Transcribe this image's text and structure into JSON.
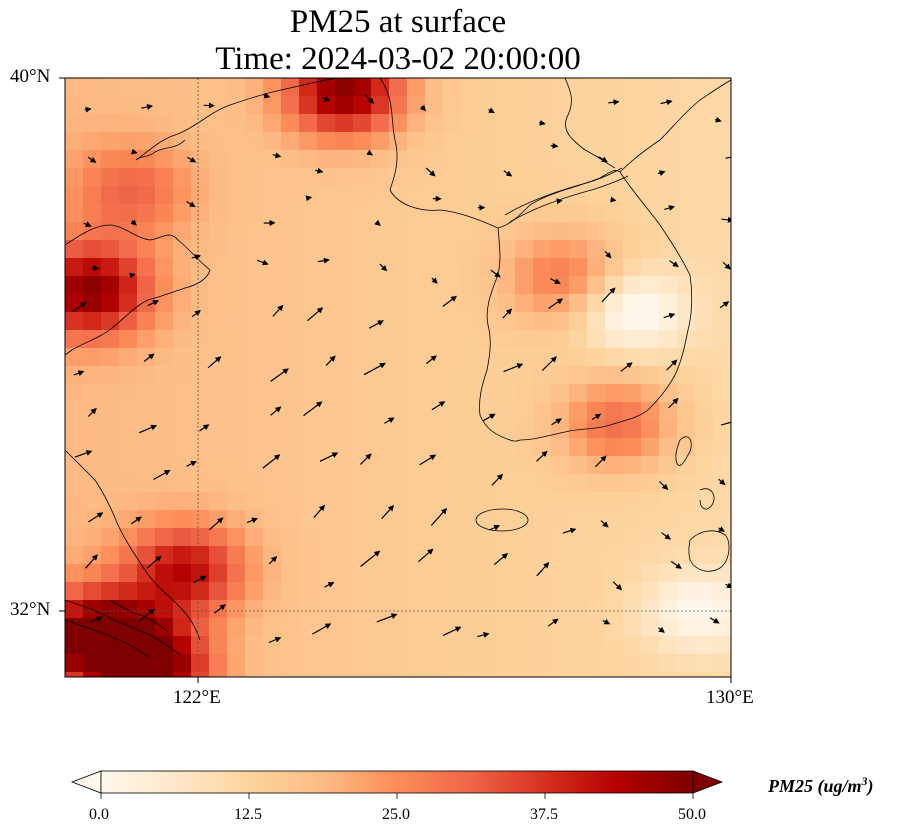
{
  "title": {
    "line1": "PM25 at surface",
    "line2": "Time: 2024-03-02 20:00:00"
  },
  "axes": {
    "lat_labels": [
      "40°N",
      "32°N"
    ],
    "lon_labels": [
      "122°E",
      "130°E"
    ],
    "lon_range": [
      120,
      130
    ],
    "lat_range": [
      31,
      40
    ]
  },
  "colorbar": {
    "title": "PM25 (ug/m",
    "title_superscript": "3",
    "title_close": ")",
    "ticks": [
      "0.0",
      "12.5",
      "25.0",
      "37.5",
      "50.0"
    ],
    "range": [
      0,
      50
    ],
    "extend": "both",
    "colormap": [
      "#fff7ec",
      "#fee8c8",
      "#fdd49e",
      "#fdbb84",
      "#fc8d59",
      "#ef6548",
      "#d7301f",
      "#b30000",
      "#7f0000"
    ]
  },
  "chart_data": {
    "type": "heatmap",
    "variable": "PM25",
    "units": "ug/m^3",
    "level": "surface",
    "time": "2024-03-02 20:00:00",
    "pollution_hotspots": [
      {
        "lon": 120.5,
        "lat": 31.6,
        "value": 50
      },
      {
        "lon": 121.3,
        "lat": 31.1,
        "value": 48
      },
      {
        "lon": 121.8,
        "lat": 32.6,
        "value": 40
      },
      {
        "lon": 120.4,
        "lat": 36.8,
        "value": 45
      },
      {
        "lon": 124.2,
        "lat": 39.8,
        "value": 48
      },
      {
        "lon": 121.0,
        "lat": 38.3,
        "value": 28
      },
      {
        "lon": 127.5,
        "lat": 37.0,
        "value": 30
      },
      {
        "lon": 128.3,
        "lat": 34.8,
        "value": 32
      }
    ],
    "clean_regions": [
      {
        "lon": 128.5,
        "lat": 36.5,
        "value": 2
      },
      {
        "lon": 129.5,
        "lat": 32.0,
        "value": 5
      }
    ],
    "background_value": 15,
    "wind_vectors": {
      "prevailing_direction": "southwest to northeast",
      "max_speed_relative": 1.0
    }
  }
}
